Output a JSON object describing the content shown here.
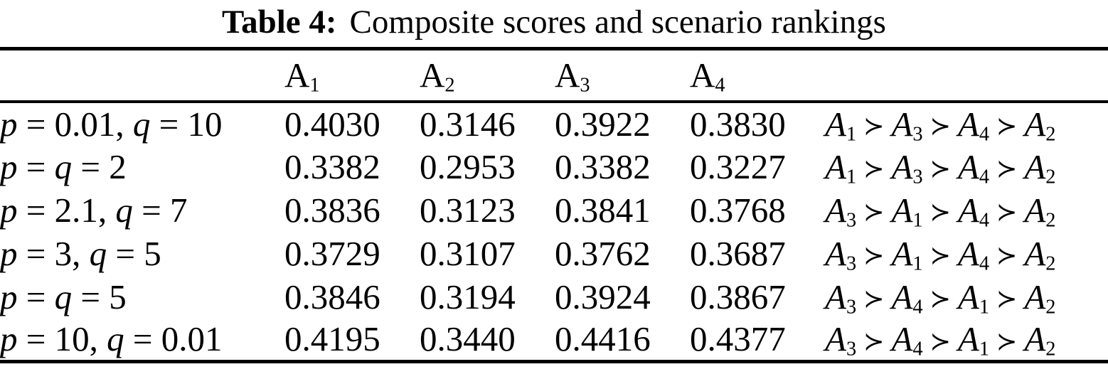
{
  "caption": {
    "label": "Table 4:",
    "text": "Composite scores and scenario rankings"
  },
  "table": {
    "succ_symbol": "≻",
    "alternative_headers": [
      {
        "base": "A",
        "sub": "1"
      },
      {
        "base": "A",
        "sub": "2"
      },
      {
        "base": "A",
        "sub": "3"
      },
      {
        "base": "A",
        "sub": "4"
      }
    ],
    "rows": [
      {
        "scenario": "p = 0.01, q = 10",
        "scores": [
          "0.4030",
          "0.3146",
          "0.3922",
          "0.3830"
        ],
        "ranking": [
          [
            "A",
            "1"
          ],
          [
            "A",
            "3"
          ],
          [
            "A",
            "4"
          ],
          [
            "A",
            "2"
          ]
        ]
      },
      {
        "scenario": "p = q = 2",
        "scores": [
          "0.3382",
          "0.2953",
          "0.3382",
          "0.3227"
        ],
        "ranking": [
          [
            "A",
            "1"
          ],
          [
            "A",
            "3"
          ],
          [
            "A",
            "4"
          ],
          [
            "A",
            "2"
          ]
        ]
      },
      {
        "scenario": "p = 2.1, q = 7",
        "scores": [
          "0.3836",
          "0.3123",
          "0.3841",
          "0.3768"
        ],
        "ranking": [
          [
            "A",
            "3"
          ],
          [
            "A",
            "1"
          ],
          [
            "A",
            "4"
          ],
          [
            "A",
            "2"
          ]
        ]
      },
      {
        "scenario": "p = 3, q = 5",
        "scores": [
          "0.3729",
          "0.3107",
          "0.3762",
          "0.3687"
        ],
        "ranking": [
          [
            "A",
            "3"
          ],
          [
            "A",
            "1"
          ],
          [
            "A",
            "4"
          ],
          [
            "A",
            "2"
          ]
        ]
      },
      {
        "scenario": "p = q = 5",
        "scores": [
          "0.3846",
          "0.3194",
          "0.3924",
          "0.3867"
        ],
        "ranking": [
          [
            "A",
            "3"
          ],
          [
            "A",
            "4"
          ],
          [
            "A",
            "1"
          ],
          [
            "A",
            "2"
          ]
        ]
      },
      {
        "scenario": "p = 10, q = 0.01",
        "scores": [
          "0.4195",
          "0.3440",
          "0.4416",
          "0.4377"
        ],
        "ranking": [
          [
            "A",
            "3"
          ],
          [
            "A",
            "4"
          ],
          [
            "A",
            "1"
          ],
          [
            "A",
            "2"
          ]
        ]
      }
    ]
  }
}
